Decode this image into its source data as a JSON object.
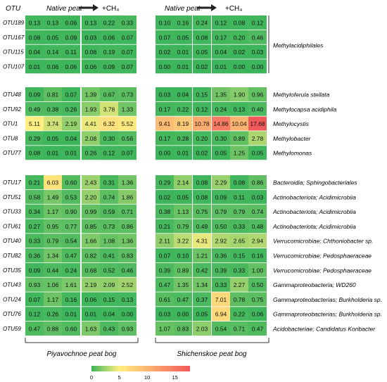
{
  "chart_data": {
    "type": "heatmap",
    "row_axis_label": "OTU",
    "conditions": [
      "Native peat",
      "+CH₄",
      "Native peat",
      "+CH₄"
    ],
    "sites": [
      "Piyavochnoe peat bog",
      "Shichenskoe peat bog"
    ],
    "groups": [
      {
        "label": "Methylacidiphilales",
        "rows": [
          {
            "otu": "OTU189",
            "values": [
              0.13,
              0.13,
              0.06,
              0.13,
              0.22,
              0.33,
              0.1,
              0.16,
              0.24,
              0.12,
              0.08,
              0.12
            ]
          },
          {
            "otu": "OTU167",
            "values": [
              0.08,
              0.05,
              0.09,
              0.03,
              0.06,
              0.07,
              0.07,
              0.05,
              0.08,
              0.17,
              0.2,
              0.46
            ]
          },
          {
            "otu": "OTU115",
            "values": [
              0.04,
              0.14,
              0.11,
              0.08,
              0.19,
              0.07,
              0.02,
              0.01,
              0.05,
              0.04,
              0.02,
              0.03
            ]
          },
          {
            "otu": "OTU107",
            "values": [
              0.01,
              0.06,
              0.06,
              0.06,
              0.09,
              0.07,
              0.0,
              0.01,
              0.02,
              0.01,
              0.0,
              0.0
            ]
          }
        ]
      },
      {
        "label": "",
        "rows": [
          {
            "otu": "OTU48",
            "taxon": "Methyloferula stellata",
            "values": [
              0.09,
              0.81,
              0.07,
              1.39,
              0.67,
              0.73,
              0.03,
              0.04,
              0.15,
              1.35,
              1.9,
              0.96
            ]
          },
          {
            "otu": "OTU92",
            "taxon": "Methylocapsa acidiphila",
            "values": [
              0.49,
              0.38,
              0.26,
              1.93,
              3.78,
              1.33,
              0.17,
              0.22,
              0.12,
              0.24,
              0.13,
              0.4
            ]
          },
          {
            "otu": "OTU1",
            "taxon": "Methylocystis",
            "values": [
              5.11,
              3.74,
              2.19,
              4.41,
              6.32,
              5.52,
              9.41,
              8.19,
              10.78,
              14.86,
              10.04,
              17.68
            ]
          },
          {
            "otu": "OTU8",
            "taxon": "Methylobacter",
            "values": [
              0.29,
              0.05,
              0.04,
              2.08,
              0.3,
              0.56,
              0.17,
              0.28,
              0.2,
              0.3,
              0.89,
              2.78
            ]
          },
          {
            "otu": "OTU77",
            "taxon": "Methylomonas",
            "values": [
              0.08,
              0.01,
              0.01,
              0.26,
              0.12,
              0.07,
              0.0,
              0.01,
              0.02,
              0.05,
              1.25,
              0.05
            ]
          }
        ]
      },
      {
        "label": "",
        "rows": [
          {
            "otu": "OTU17",
            "taxon": "Bacteroidia; Sphingobacteriales",
            "values": [
              0.21,
              6.03,
              0.6,
              2.43,
              0.31,
              1.36,
              0.29,
              2.14,
              0.08,
              2.29,
              0.08,
              0.86
            ]
          },
          {
            "otu": "OTU51",
            "taxon": "Actinobacteriota; Acidimicrobiia",
            "values": [
              0.58,
              1.49,
              0.53,
              2.2,
              0.74,
              1.86,
              0.02,
              0.05,
              0.08,
              0.09,
              0.11,
              0.03
            ]
          },
          {
            "otu": "OTU33",
            "taxon": "Actinobacteriota; Acidimicrobiia",
            "values": [
              0.34,
              1.17,
              0.9,
              0.99,
              0.59,
              0.71,
              0.38,
              1.13,
              0.75,
              0.79,
              0.79,
              0.74
            ]
          },
          {
            "otu": "OTU61",
            "taxon": "Actinobacteriota; Acidimicrobiia",
            "values": [
              0.27,
              0.95,
              0.77,
              0.85,
              0.73,
              0.86,
              0.21,
              0.79,
              0.49,
              0.5,
              0.33,
              0.48
            ]
          },
          {
            "otu": "OTU40",
            "taxon": "Verrucomicrobiae; Chthoniobacter sp.",
            "values": [
              0.33,
              0.79,
              0.54,
              1.66,
              1.08,
              1.36,
              2.11,
              3.22,
              4.31,
              2.92,
              2.65,
              2.94
            ]
          },
          {
            "otu": "OTU82",
            "taxon": "Verrucomicrobiae; Pedosphaeraceae",
            "values": [
              0.36,
              1.34,
              0.47,
              0.82,
              0.41,
              0.83,
              0.07,
              0.1,
              1.21,
              0.36,
              0.15,
              0.16
            ]
          },
          {
            "otu": "OTU35",
            "taxon": "Verrucomicrobiae; Pedosphaeraceae",
            "values": [
              0.09,
              0.44,
              0.24,
              0.68,
              0.52,
              0.46,
              0.39,
              0.89,
              0.42,
              0.39,
              0.33,
              1.0
            ]
          },
          {
            "otu": "OTU43",
            "taxon": "Gammaproteobacteria; WD260",
            "values": [
              0.93,
              1.06,
              1.61,
              2.19,
              2.09,
              2.52,
              0.47,
              1.35,
              1.34,
              0.33,
              2.27,
              0.5
            ]
          },
          {
            "otu": "OTU24",
            "taxon": "Gammaproteobacterias; Burkholderia sp.",
            "values": [
              0.07,
              1.17,
              0.16,
              0.06,
              0.15,
              0.13,
              0.61,
              0.47,
              0.37,
              7.01,
              0.78,
              0.75
            ]
          },
          {
            "otu": "OTU76",
            "taxon": "Gammaproteobacterias; Burkholderia sp.",
            "values": [
              0.12,
              0.26,
              0.01,
              0.01,
              0.04,
              0.0,
              0.03,
              0.0,
              0.05,
              6.94,
              0.22,
              0.06
            ]
          },
          {
            "otu": "OTU59",
            "taxon": "Acidobacteriae; Candidatus Koribacter",
            "values": [
              0.47,
              0.88,
              0.6,
              1.63,
              0.43,
              0.93,
              1.07,
              0.83,
              2.03,
              0.54,
              0.71,
              0.47
            ]
          }
        ]
      }
    ],
    "colorbar": {
      "min": 0,
      "max": 17.7,
      "ticks": [
        0,
        5,
        10,
        15
      ]
    },
    "colors": {
      "low": "#3db55c",
      "mid": "#fff080",
      "high": "#f25a5a"
    },
    "grid": false
  }
}
